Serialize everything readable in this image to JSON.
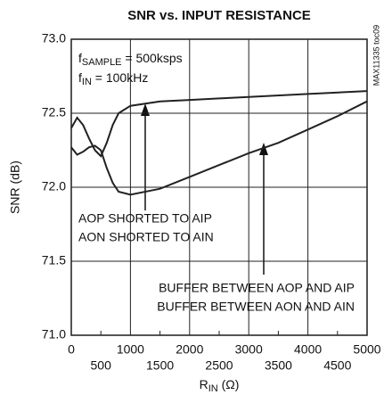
{
  "chart_data": {
    "type": "line",
    "title": "SNR vs. INPUT RESISTANCE",
    "ylabel": "SNR (dB)",
    "xlabel": {
      "main": "R",
      "sub": "IN",
      "rest": " (Ω)"
    },
    "side_note": "MAX11335 toc09",
    "conditions": [
      {
        "main": "f",
        "sub": "SAMPLE",
        "rest": " = 500ksps"
      },
      {
        "main": "f",
        "sub": "IN",
        "rest": " = 100kHz"
      }
    ],
    "annotations": [
      [
        "AOP SHORTED TO AIP",
        "AON SHORTED TO AIN"
      ],
      [
        "BUFFER BETWEEN AOP AND AIP",
        "BUFFER BETWEEN AON AND AIN"
      ]
    ],
    "xlim": [
      0,
      5000
    ],
    "xticks": [
      0,
      500,
      1000,
      1500,
      2000,
      2500,
      3000,
      3500,
      4000,
      4500,
      5000
    ],
    "ylim": [
      71.0,
      73.0
    ],
    "yticks": [
      {
        "value": 71.0,
        "label": "71.0"
      },
      {
        "value": 71.5,
        "label": "71.5"
      },
      {
        "value": 72.0,
        "label": "72.0"
      },
      {
        "value": 72.5,
        "label": "72.5"
      },
      {
        "value": 73.0,
        "label": "73.0"
      }
    ],
    "grid": true,
    "series": [
      {
        "color": "#222",
        "x": [
          0,
          100,
          200,
          300,
          400,
          500,
          600,
          700,
          800,
          1000,
          1500,
          2000,
          2500,
          3000,
          4000,
          5000
        ],
        "values": [
          72.4,
          72.47,
          72.42,
          72.33,
          72.25,
          72.21,
          72.3,
          72.42,
          72.5,
          72.55,
          72.58,
          72.59,
          72.6,
          72.61,
          72.63,
          72.65
        ]
      },
      {
        "color": "#222",
        "x": [
          0,
          100,
          200,
          300,
          400,
          500,
          600,
          700,
          800,
          1000,
          1500,
          2000,
          2500,
          3000,
          3500,
          4000,
          4500,
          5000
        ],
        "values": [
          72.27,
          72.22,
          72.24,
          72.27,
          72.28,
          72.25,
          72.13,
          72.03,
          71.97,
          71.95,
          71.99,
          72.07,
          72.15,
          72.23,
          72.3,
          72.39,
          72.48,
          72.58
        ]
      }
    ]
  }
}
